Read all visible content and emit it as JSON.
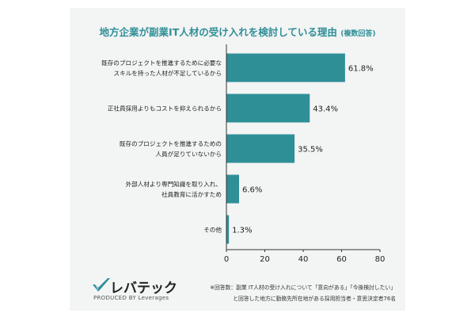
{
  "title": "地方企業が副業IT人材の受け入れを検討している理由",
  "title_note": "(複数回答)",
  "chart_data": {
    "type": "bar",
    "orientation": "horizontal",
    "categories": [
      [
        "既存のプロジェクトを推進するために必要な",
        "スキルを持った人材が不足しているから"
      ],
      [
        "正社員採用よりもコストを抑えられるから"
      ],
      [
        "既存のプロジェクトを推進するための",
        "人員が足りていないから"
      ],
      [
        "外部人材より専門知識を取り入れ、",
        "社員教育に活かすため"
      ],
      [
        "その他"
      ]
    ],
    "values": [
      61.8,
      43.4,
      35.5,
      6.6,
      1.3
    ],
    "value_labels": [
      "61.8%",
      "43.4%",
      "35.5%",
      "6.6%",
      "1.3%"
    ],
    "xlim": [
      0,
      80
    ],
    "xticks": [
      0,
      20,
      40,
      60,
      80
    ],
    "xlabel": "",
    "ylabel": "",
    "grid": false,
    "bar_color": "#2f8f97"
  },
  "logo": {
    "brand": "レバテック",
    "tagline": "PRODUCED BY Leverages"
  },
  "footnote": [
    "※回答数：副業 IT人材の受け入れについて「意向がある」「今後検討したい」",
    "と回答した地方に勤務先所在地がある採用担当者・意思決定者76名"
  ],
  "colors": {
    "accent": "#2f8f97",
    "card_bg": "#f3f4f4",
    "logo_check": "#2f8f97"
  }
}
